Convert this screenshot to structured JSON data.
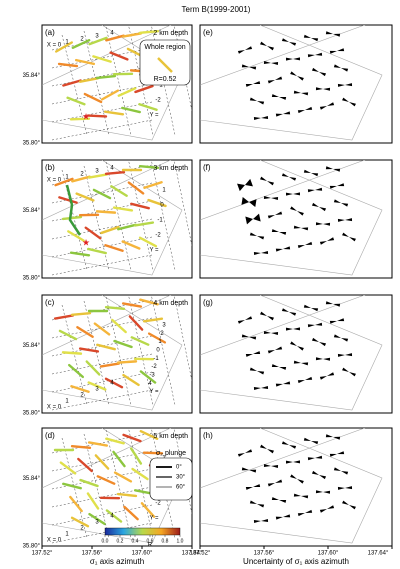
{
  "title": "Term B(1999-2001)",
  "left_panels": [
    {
      "label": "(a)",
      "depth": "2 km depth",
      "x_labels": [
        "X = 0",
        "1",
        "2",
        "3",
        "4"
      ],
      "y_labels": [
        "1",
        "0",
        "-1",
        "-2",
        "Y ="
      ]
    },
    {
      "label": "(b)",
      "depth": "3 km depth",
      "x_labels": [
        "X = 0",
        "1",
        "2",
        "3",
        "4"
      ],
      "y_labels": [
        "1",
        "0",
        "-1",
        "-2",
        "Y ="
      ]
    },
    {
      "label": "(c)",
      "depth": "4 km depth",
      "x_labels": [
        "X = 0",
        "1",
        "2",
        "3",
        "4"
      ],
      "y_labels": [
        "3",
        "2",
        "1",
        "0",
        "-1",
        "-2",
        "-3",
        "4",
        "Y ="
      ]
    },
    {
      "label": "(d)",
      "depth": "5 km depth",
      "x_labels": [
        "X = 0",
        "1",
        "2",
        "3",
        "4"
      ],
      "y_labels": [
        "1",
        "0",
        "-1",
        "-2",
        "Y ="
      ]
    }
  ],
  "right_panels": [
    {
      "label": "(e)"
    },
    {
      "label": "(f)"
    },
    {
      "label": "(g)"
    },
    {
      "label": "(h)"
    }
  ],
  "legend_a": {
    "title": "Whole region",
    "text": "R=0.52"
  },
  "legend_d": {
    "title": "σ₂ plunge",
    "items": [
      "0°",
      "30°",
      "60°"
    ]
  },
  "colorbar": {
    "label": "R",
    "ticks": [
      {
        "value": 0,
        "label": "0.0"
      },
      0.2,
      0.4,
      0.6,
      0.8,
      {
        "value": 1,
        "label": "1.0"
      }
    ]
  },
  "xlim": [
    137.52,
    137.64
  ],
  "xticks": [
    {
      "value": 137.52,
      "label": "137.52°"
    },
    {
      "value": 137.56,
      "label": "137.56°"
    },
    {
      "value": 137.6,
      "label": "137.60°"
    },
    {
      "value": 137.64,
      "label": "137.64°"
    }
  ],
  "ylim": [
    35.8,
    35.87
  ],
  "yticks": [
    {
      "value": 35.8,
      "label": "35.80°"
    },
    {
      "value": 35.84,
      "label": "35.84°"
    }
  ],
  "xlabel_left": "σ₁ axis azimuth",
  "xlabel_right": "Uncertainty of σ₁ axis azimuth"
}
